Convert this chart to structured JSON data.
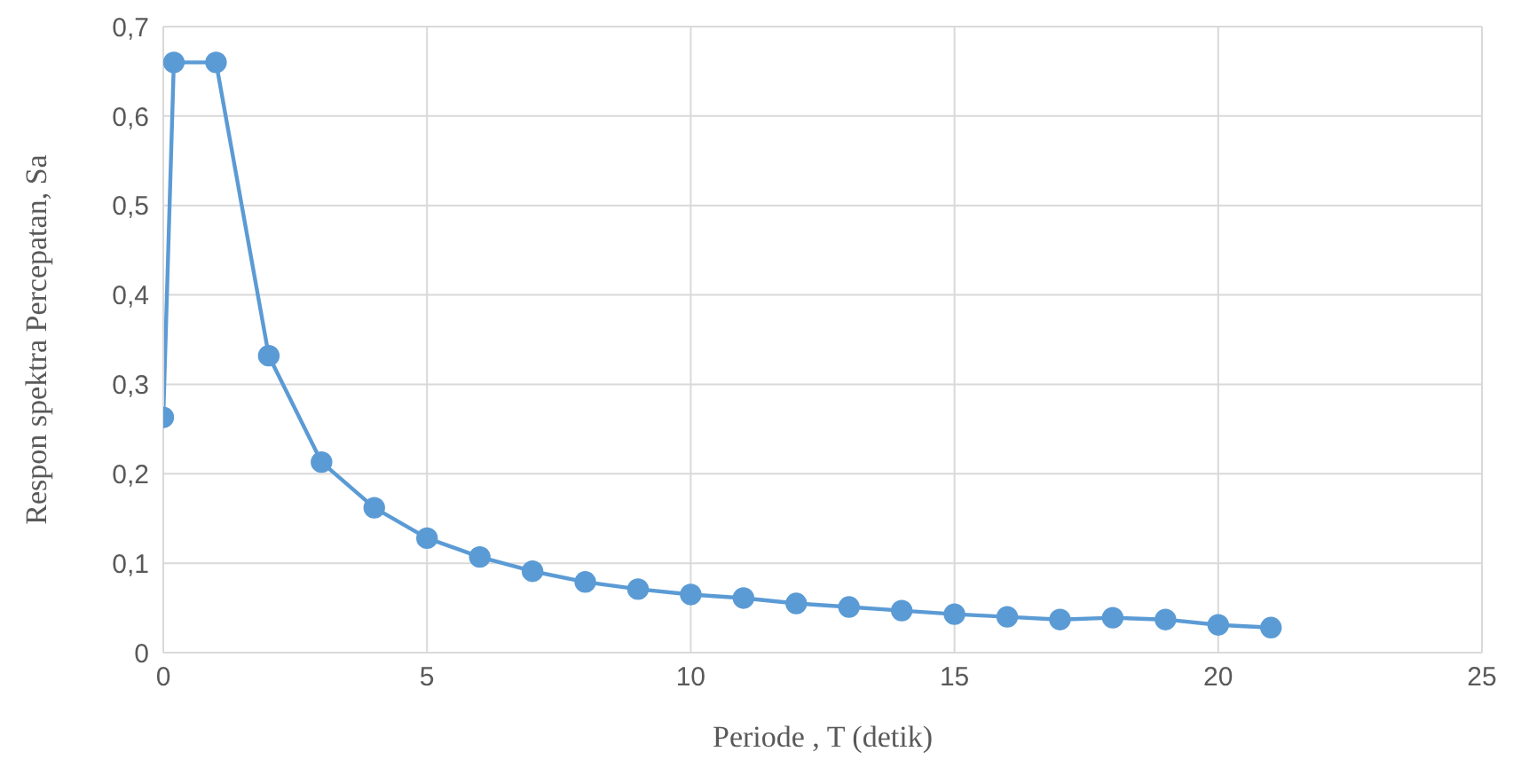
{
  "chart_data": {
    "type": "line",
    "xlabel": "Periode , T (detik)",
    "ylabel": "Respon spektra Percepatan, Sa",
    "x": [
      0,
      0.2,
      1,
      2,
      3,
      4,
      5,
      6,
      7,
      8,
      9,
      10,
      11,
      12,
      13,
      14,
      15,
      16,
      17,
      18,
      19,
      20,
      21
    ],
    "series": [
      {
        "color": "#5b9bd5",
        "values": [
          0.263,
          0.66,
          0.66,
          0.332,
          0.213,
          0.162,
          0.128,
          0.107,
          0.091,
          0.079,
          0.071,
          0.065,
          0.061,
          0.055,
          0.051,
          0.047,
          0.043,
          0.04,
          0.037,
          0.039,
          0.037,
          0.031,
          0.028
        ]
      }
    ],
    "xlim": [
      0,
      25
    ],
    "xticks": [
      0,
      5,
      10,
      15,
      20,
      25
    ],
    "ylim": [
      0,
      0.7
    ],
    "yticks": [
      0,
      {
        "value": 0.1,
        "label": "0,1"
      },
      {
        "value": 0.2,
        "label": "0,2"
      },
      {
        "value": 0.3,
        "label": "0,3"
      },
      {
        "value": 0.4,
        "label": "0,4"
      },
      {
        "value": 0.5,
        "label": "0,5"
      },
      {
        "value": 0.6,
        "label": "0,6"
      },
      {
        "value": 0.7,
        "label": "0,7"
      }
    ],
    "grid": true,
    "marker": "circle",
    "line_style": "solid",
    "legend": false
  }
}
